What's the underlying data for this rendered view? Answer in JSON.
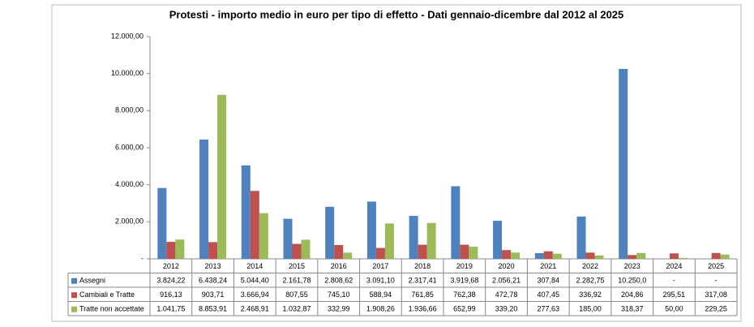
{
  "chart_data": {
    "type": "bar",
    "title": "Protesti - importo medio in euro per tipo di effetto - Dati gennaio-dicembre dal 2012 al 2025",
    "categories": [
      "2012",
      "2013",
      "2014",
      "2015",
      "2016",
      "2017",
      "2018",
      "2019",
      "2020",
      "2021",
      "2022",
      "2023",
      "2024",
      "2025"
    ],
    "series": [
      {
        "name": "Assegni",
        "color": "#4f81bd",
        "values": [
          3824.22,
          6438.24,
          5044.4,
          2161.78,
          2808.62,
          3091.1,
          2317.41,
          3919.68,
          2056.21,
          307.84,
          2282.75,
          10250.0,
          null,
          null
        ],
        "value_labels": [
          "3.824,22",
          "6.438,24",
          "5.044,40",
          "2.161,78",
          "2.808,62",
          "3.091,10",
          "2.317,41",
          "3.919,68",
          "2.056,21",
          "307,84",
          "2.282,75",
          "10.250,0",
          "-",
          "-"
        ]
      },
      {
        "name": "Cambiali e Tratte",
        "color": "#c0504d",
        "values": [
          916.13,
          903.71,
          3666.94,
          807.55,
          745.1,
          588.94,
          761.85,
          762.38,
          472.78,
          407.45,
          336.92,
          204.86,
          295.51,
          317.08
        ],
        "value_labels": [
          "916,13",
          "903,71",
          "3.666,94",
          "807,55",
          "745,10",
          "588,94",
          "761,85",
          "762,38",
          "472,78",
          "407,45",
          "336,92",
          "204,86",
          "295,51",
          "317,08"
        ]
      },
      {
        "name": "Tratte non accettate",
        "color": "#9bbb59",
        "values": [
          1041.75,
          8853.91,
          2468.91,
          1032.87,
          332.99,
          1908.26,
          1936.66,
          652.99,
          339.2,
          277.63,
          185.0,
          318.37,
          50.0,
          229.25
        ],
        "value_labels": [
          "1.041,75",
          "8.853,91",
          "2.468,91",
          "1.032,87",
          "332,99",
          "1.908,26",
          "1.936,66",
          "652,99",
          "339,20",
          "277,63",
          "185,00",
          "318,37",
          "50,00",
          "229,25"
        ]
      }
    ],
    "ylim": [
      0,
      12000
    ],
    "yticks": [
      {
        "value": 0,
        "label": "-"
      },
      {
        "value": 2000,
        "label": "2.000,00"
      },
      {
        "value": 4000,
        "label": "4.000,00"
      },
      {
        "value": 6000,
        "label": "6.000,00"
      },
      {
        "value": 8000,
        "label": "8.000,00"
      },
      {
        "value": 10000,
        "label": "10.000,00"
      },
      {
        "value": 12000,
        "label": "12.000,00"
      }
    ],
    "grid": false
  }
}
